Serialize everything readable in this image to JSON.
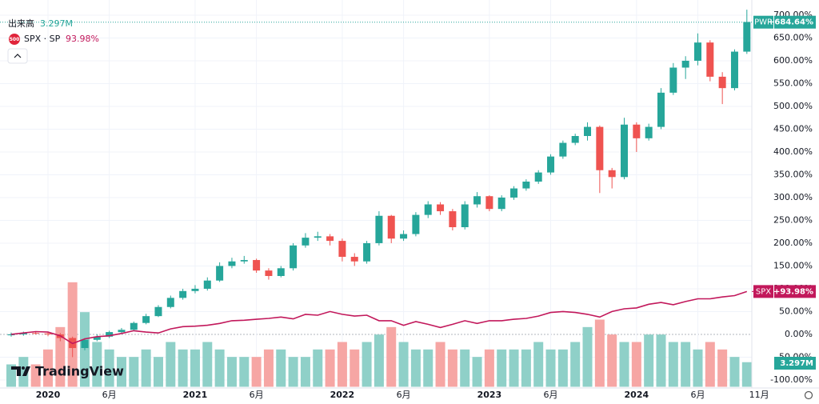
{
  "chart_data": {
    "type": "candlestick",
    "brand": "TradingView",
    "x": [
      "2019-10",
      "2019-11",
      "2019-12",
      "2020-01",
      "2020-02",
      "2020-03",
      "2020-04",
      "2020-05",
      "2020-06",
      "2020-07",
      "2020-08",
      "2020-09",
      "2020-10",
      "2020-11",
      "2020-12",
      "2021-01",
      "2021-02",
      "2021-03",
      "2021-04",
      "2021-05",
      "2021-06",
      "2021-07",
      "2021-08",
      "2021-09",
      "2021-10",
      "2021-11",
      "2021-12",
      "2022-01",
      "2022-02",
      "2022-03",
      "2022-04",
      "2022-05",
      "2022-06",
      "2022-07",
      "2022-08",
      "2022-09",
      "2022-10",
      "2022-11",
      "2022-12",
      "2023-01",
      "2023-02",
      "2023-03",
      "2023-04",
      "2023-05",
      "2023-06",
      "2023-07",
      "2023-08",
      "2023-09",
      "2023-10",
      "2023-11",
      "2023-12",
      "2024-01",
      "2024-02",
      "2024-03",
      "2024-04",
      "2024-05",
      "2024-06",
      "2024-07",
      "2024-08",
      "2024-09",
      "2024-10"
    ],
    "xticks": [
      {
        "value": "2020-01",
        "label": "2020"
      },
      {
        "value": "2020-06",
        "label": "6月"
      },
      {
        "value": "2021-01",
        "label": "2021"
      },
      {
        "value": "2021-06",
        "label": "6月"
      },
      {
        "value": "2022-01",
        "label": "2022"
      },
      {
        "value": "2022-06",
        "label": "6月"
      },
      {
        "value": "2023-01",
        "label": "2023"
      },
      {
        "value": "2023-06",
        "label": "6月"
      },
      {
        "value": "2024-01",
        "label": "2024"
      },
      {
        "value": "2024-06",
        "label": "6月"
      },
      {
        "value": "2024-11",
        "label": "11月"
      }
    ],
    "ylim": [
      -115,
      715
    ],
    "yticks": [
      {
        "value": 700,
        "label": "700.00%"
      },
      {
        "value": 650,
        "label": "650.00%"
      },
      {
        "value": 600,
        "label": "600.00%"
      },
      {
        "value": 550,
        "label": "550.00%"
      },
      {
        "value": 500,
        "label": "500.00%"
      },
      {
        "value": 450,
        "label": "450.00%"
      },
      {
        "value": 400,
        "label": "400.00%"
      },
      {
        "value": 350,
        "label": "350.00%"
      },
      {
        "value": 300,
        "label": "300.00%"
      },
      {
        "value": 250,
        "label": "250.00%"
      },
      {
        "value": 200,
        "label": "200.00%"
      },
      {
        "value": 150,
        "label": "150.00%"
      },
      {
        "value": 100,
        "label": "100.00%"
      },
      {
        "value": 50,
        "label": "50.00%"
      },
      {
        "value": 0,
        "label": "0.00%"
      },
      {
        "value": -50,
        "label": "-50.00%"
      },
      {
        "value": -100,
        "label": "-100.00%"
      }
    ],
    "grid": true,
    "price": {
      "name": "PWR",
      "up_color": "#26a69a",
      "down_color": "#ef5350",
      "open": [
        -2,
        0,
        3,
        2,
        0,
        -8,
        -30,
        -12,
        -5,
        5,
        10,
        25,
        40,
        60,
        80,
        95,
        100,
        118,
        150,
        160,
        163,
        140,
        128,
        145,
        195,
        212,
        215,
        205,
        170,
        160,
        200,
        260,
        210,
        220,
        262,
        285,
        270,
        235,
        285,
        303,
        275,
        300,
        320,
        335,
        355,
        390,
        420,
        435,
        455,
        360,
        345,
        460,
        430,
        455,
        530,
        585,
        600,
        640,
        565,
        540,
        620
      ],
      "high": [
        4,
        6,
        7,
        5,
        3,
        -5,
        -8,
        0,
        8,
        14,
        28,
        45,
        64,
        85,
        100,
        108,
        125,
        158,
        168,
        172,
        166,
        145,
        150,
        200,
        222,
        225,
        220,
        210,
        178,
        205,
        270,
        262,
        228,
        268,
        292,
        290,
        275,
        292,
        312,
        305,
        305,
        325,
        340,
        360,
        395,
        425,
        440,
        465,
        458,
        365,
        475,
        465,
        462,
        540,
        595,
        610,
        660,
        645,
        575,
        625,
        712
      ],
      "low": [
        -5,
        -3,
        0,
        -4,
        -15,
        -50,
        -35,
        -15,
        -8,
        2,
        8,
        22,
        38,
        57,
        76,
        90,
        96,
        115,
        145,
        155,
        135,
        120,
        125,
        140,
        190,
        205,
        195,
        160,
        150,
        155,
        195,
        200,
        205,
        215,
        255,
        262,
        228,
        230,
        278,
        270,
        270,
        295,
        315,
        330,
        350,
        385,
        415,
        425,
        310,
        320,
        340,
        400,
        425,
        450,
        525,
        560,
        590,
        555,
        505,
        535,
        615
      ],
      "close": [
        0,
        3,
        2,
        0,
        -8,
        -30,
        -12,
        -5,
        5,
        10,
        25,
        40,
        60,
        80,
        95,
        100,
        118,
        150,
        160,
        163,
        140,
        128,
        145,
        195,
        212,
        215,
        205,
        170,
        160,
        200,
        260,
        210,
        220,
        262,
        285,
        270,
        235,
        285,
        303,
        275,
        300,
        320,
        335,
        355,
        390,
        420,
        435,
        455,
        360,
        345,
        460,
        430,
        455,
        530,
        585,
        600,
        640,
        565,
        540,
        620,
        685
      ],
      "last": {
        "value": 684.64,
        "label": "+684.64%"
      }
    },
    "compare": {
      "name": "SPX",
      "legend": "SPX · SP",
      "icon": "500",
      "color": "#c2185b",
      "legend_value": "93.98%",
      "values": [
        0,
        3,
        6,
        5,
        -3,
        -20,
        -10,
        -5,
        -3,
        2,
        8,
        5,
        3,
        12,
        17,
        18,
        20,
        24,
        30,
        31,
        33,
        35,
        38,
        34,
        44,
        42,
        50,
        44,
        40,
        42,
        30,
        30,
        20,
        28,
        22,
        15,
        22,
        30,
        24,
        30,
        30,
        33,
        35,
        40,
        48,
        50,
        48,
        44,
        38,
        50,
        56,
        58,
        66,
        70,
        65,
        72,
        78,
        78,
        82,
        85,
        94
      ],
      "last": {
        "value": 93.98,
        "label": "+93.98%"
      }
    },
    "volume": {
      "name": "出来高",
      "up_color": "#8fd0c8",
      "down_color": "#f6a6a4",
      "vlim": [
        0,
        15
      ],
      "values": [
        3,
        4,
        3,
        5,
        8,
        14,
        10,
        6,
        5,
        4,
        4,
        5,
        4,
        6,
        5,
        5,
        6,
        5,
        4,
        4,
        4,
        5,
        5,
        4,
        4,
        5,
        5,
        6,
        5,
        6,
        7,
        8,
        6,
        5,
        5,
        6,
        5,
        5,
        4,
        5,
        5,
        5,
        5,
        6,
        5,
        5,
        6,
        8,
        9,
        7,
        6,
        6,
        7,
        7,
        6,
        6,
        5,
        6,
        5,
        4,
        3.297
      ],
      "value_labels": {
        "60": "3.297M"
      }
    }
  }
}
